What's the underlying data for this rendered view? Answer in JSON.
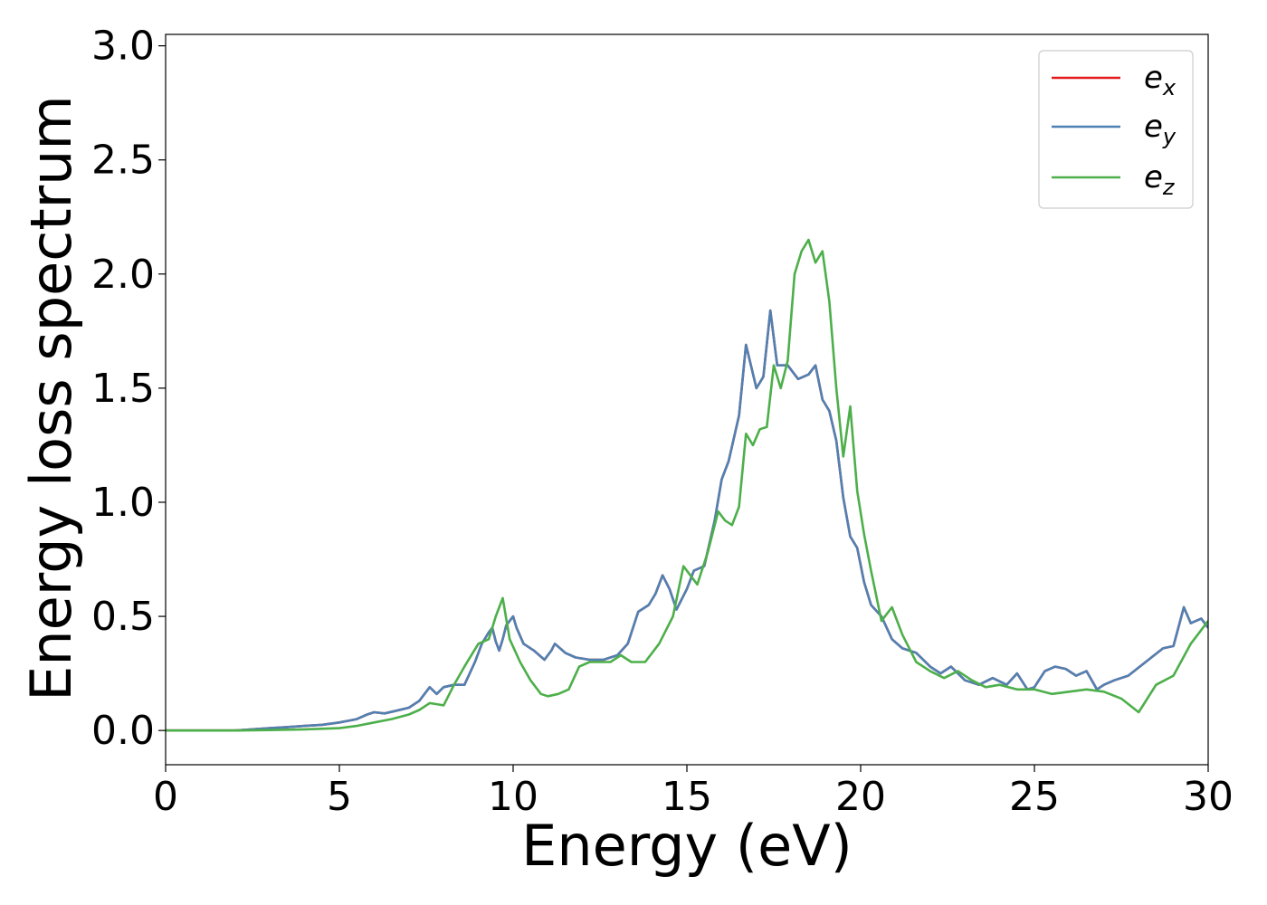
{
  "chart_data": {
    "type": "line",
    "title": "",
    "xlabel": "Energy (eV)",
    "ylabel": "Energy loss spectrum",
    "xlim": [
      0,
      30
    ],
    "ylim": [
      -0.15,
      3.05
    ],
    "xticks": [
      0,
      5,
      10,
      15,
      20,
      25,
      30
    ],
    "yticks": [
      0.0,
      0.5,
      1.0,
      1.5,
      2.0,
      2.5,
      3.0
    ],
    "xtick_labels": [
      "0",
      "5",
      "10",
      "15",
      "20",
      "25",
      "30"
    ],
    "ytick_labels": [
      "0.0",
      "0.5",
      "1.0",
      "1.5",
      "2.0",
      "2.5",
      "3.0"
    ],
    "grid": false,
    "legend_position": "top-right",
    "series": [
      {
        "name": "e_x",
        "legend_base": "e",
        "legend_sub": "x",
        "color": "#e41a1c",
        "x": [
          0,
          1,
          2,
          3,
          3.5,
          4,
          4.5,
          5,
          5.5,
          5.8,
          6,
          6.3,
          6.6,
          7,
          7.3,
          7.6,
          7.8,
          8,
          8.3,
          8.6,
          8.9,
          9.1,
          9.3,
          9.4,
          9.5,
          9.6,
          9.7,
          9.8,
          10,
          10.1,
          10.3,
          10.6,
          10.9,
          11.1,
          11.2,
          11.5,
          11.8,
          12.2,
          12.6,
          13,
          13.3,
          13.6,
          13.9,
          14.1,
          14.3,
          14.5,
          14.7,
          15,
          15.2,
          15.5,
          15.8,
          16,
          16.2,
          16.5,
          16.7,
          17,
          17.2,
          17.4,
          17.6,
          17.9,
          18.2,
          18.5,
          18.7,
          18.9,
          19.1,
          19.3,
          19.5,
          19.7,
          19.9,
          20.1,
          20.3,
          20.6,
          20.9,
          21.2,
          21.6,
          22,
          22.3,
          22.6,
          23,
          23.4,
          23.8,
          24.2,
          24.5,
          24.8,
          25,
          25.3,
          25.6,
          25.9,
          26.2,
          26.5,
          26.8,
          27,
          27.3,
          27.7,
          28.2,
          28.7,
          29,
          29.3,
          29.5,
          29.8,
          30
        ],
        "y": [
          0,
          0,
          0,
          0.01,
          0.015,
          0.02,
          0.025,
          0.035,
          0.05,
          0.07,
          0.08,
          0.075,
          0.085,
          0.1,
          0.13,
          0.19,
          0.16,
          0.19,
          0.2,
          0.2,
          0.3,
          0.38,
          0.43,
          0.45,
          0.39,
          0.35,
          0.4,
          0.46,
          0.5,
          0.45,
          0.38,
          0.35,
          0.31,
          0.35,
          0.38,
          0.34,
          0.32,
          0.31,
          0.31,
          0.33,
          0.38,
          0.52,
          0.55,
          0.6,
          0.68,
          0.62,
          0.53,
          0.62,
          0.7,
          0.72,
          0.92,
          1.1,
          1.18,
          1.38,
          1.69,
          1.5,
          1.55,
          1.84,
          1.6,
          1.6,
          1.54,
          1.56,
          1.6,
          1.45,
          1.4,
          1.27,
          1.02,
          0.85,
          0.8,
          0.65,
          0.55,
          0.5,
          0.4,
          0.36,
          0.34,
          0.28,
          0.25,
          0.28,
          0.22,
          0.2,
          0.23,
          0.2,
          0.25,
          0.18,
          0.19,
          0.26,
          0.28,
          0.27,
          0.24,
          0.26,
          0.18,
          0.2,
          0.22,
          0.24,
          0.3,
          0.36,
          0.37,
          0.54,
          0.47,
          0.49,
          0.45
        ]
      },
      {
        "name": "e_y",
        "legend_base": "e",
        "legend_sub": "y",
        "color": "#4f81b3",
        "x": [
          0,
          1,
          2,
          3,
          3.5,
          4,
          4.5,
          5,
          5.5,
          5.8,
          6,
          6.3,
          6.6,
          7,
          7.3,
          7.6,
          7.8,
          8,
          8.3,
          8.6,
          8.9,
          9.1,
          9.3,
          9.4,
          9.5,
          9.6,
          9.7,
          9.8,
          10,
          10.1,
          10.3,
          10.6,
          10.9,
          11.1,
          11.2,
          11.5,
          11.8,
          12.2,
          12.6,
          13,
          13.3,
          13.6,
          13.9,
          14.1,
          14.3,
          14.5,
          14.7,
          15,
          15.2,
          15.5,
          15.8,
          16,
          16.2,
          16.5,
          16.7,
          17,
          17.2,
          17.4,
          17.6,
          17.9,
          18.2,
          18.5,
          18.7,
          18.9,
          19.1,
          19.3,
          19.5,
          19.7,
          19.9,
          20.1,
          20.3,
          20.6,
          20.9,
          21.2,
          21.6,
          22,
          22.3,
          22.6,
          23,
          23.4,
          23.8,
          24.2,
          24.5,
          24.8,
          25,
          25.3,
          25.6,
          25.9,
          26.2,
          26.5,
          26.8,
          27,
          27.3,
          27.7,
          28.2,
          28.7,
          29,
          29.3,
          29.5,
          29.8,
          30
        ],
        "y": [
          0,
          0,
          0,
          0.01,
          0.015,
          0.02,
          0.025,
          0.035,
          0.05,
          0.07,
          0.08,
          0.075,
          0.085,
          0.1,
          0.13,
          0.19,
          0.16,
          0.19,
          0.2,
          0.2,
          0.3,
          0.38,
          0.43,
          0.45,
          0.39,
          0.35,
          0.4,
          0.46,
          0.5,
          0.45,
          0.38,
          0.35,
          0.31,
          0.35,
          0.38,
          0.34,
          0.32,
          0.31,
          0.31,
          0.33,
          0.38,
          0.52,
          0.55,
          0.6,
          0.68,
          0.62,
          0.53,
          0.62,
          0.7,
          0.72,
          0.92,
          1.1,
          1.18,
          1.38,
          1.69,
          1.5,
          1.55,
          1.84,
          1.6,
          1.6,
          1.54,
          1.56,
          1.6,
          1.45,
          1.4,
          1.27,
          1.02,
          0.85,
          0.8,
          0.65,
          0.55,
          0.5,
          0.4,
          0.36,
          0.34,
          0.28,
          0.25,
          0.28,
          0.22,
          0.2,
          0.23,
          0.2,
          0.25,
          0.18,
          0.19,
          0.26,
          0.28,
          0.27,
          0.24,
          0.26,
          0.18,
          0.2,
          0.22,
          0.24,
          0.3,
          0.36,
          0.37,
          0.54,
          0.47,
          0.49,
          0.45
        ]
      },
      {
        "name": "e_z",
        "legend_base": "e",
        "legend_sub": "z",
        "color": "#4daf4a",
        "x": [
          0,
          1,
          2,
          3,
          4,
          5,
          5.5,
          6,
          6.5,
          7,
          7.3,
          7.6,
          8,
          8.3,
          8.6,
          9,
          9.3,
          9.5,
          9.7,
          9.9,
          10.2,
          10.5,
          10.8,
          11,
          11.3,
          11.6,
          11.9,
          12.2,
          12.5,
          12.8,
          13.1,
          13.4,
          13.8,
          14.2,
          14.6,
          14.9,
          15.1,
          15.3,
          15.6,
          15.9,
          16.1,
          16.3,
          16.5,
          16.7,
          16.9,
          17.1,
          17.3,
          17.5,
          17.7,
          17.9,
          18.1,
          18.3,
          18.5,
          18.7,
          18.9,
          19.1,
          19.3,
          19.5,
          19.7,
          19.9,
          20.1,
          20.3,
          20.6,
          20.9,
          21.2,
          21.6,
          22,
          22.4,
          22.8,
          23.2,
          23.6,
          24,
          24.5,
          25,
          25.5,
          26,
          26.5,
          27,
          27.5,
          28,
          28.5,
          29,
          29.5,
          30
        ],
        "y": [
          0,
          0,
          0,
          0.002,
          0.005,
          0.01,
          0.02,
          0.035,
          0.05,
          0.07,
          0.09,
          0.12,
          0.11,
          0.2,
          0.28,
          0.38,
          0.4,
          0.5,
          0.58,
          0.4,
          0.3,
          0.22,
          0.16,
          0.15,
          0.16,
          0.18,
          0.28,
          0.3,
          0.3,
          0.3,
          0.33,
          0.3,
          0.3,
          0.38,
          0.5,
          0.72,
          0.68,
          0.64,
          0.78,
          0.96,
          0.92,
          0.9,
          0.98,
          1.3,
          1.25,
          1.32,
          1.33,
          1.6,
          1.5,
          1.62,
          2.0,
          2.1,
          2.15,
          2.05,
          2.1,
          1.88,
          1.5,
          1.2,
          1.42,
          1.05,
          0.86,
          0.7,
          0.48,
          0.54,
          0.42,
          0.3,
          0.26,
          0.23,
          0.26,
          0.22,
          0.19,
          0.2,
          0.18,
          0.18,
          0.16,
          0.17,
          0.18,
          0.17,
          0.14,
          0.08,
          0.2,
          0.24,
          0.38,
          0.48
        ]
      }
    ]
  }
}
